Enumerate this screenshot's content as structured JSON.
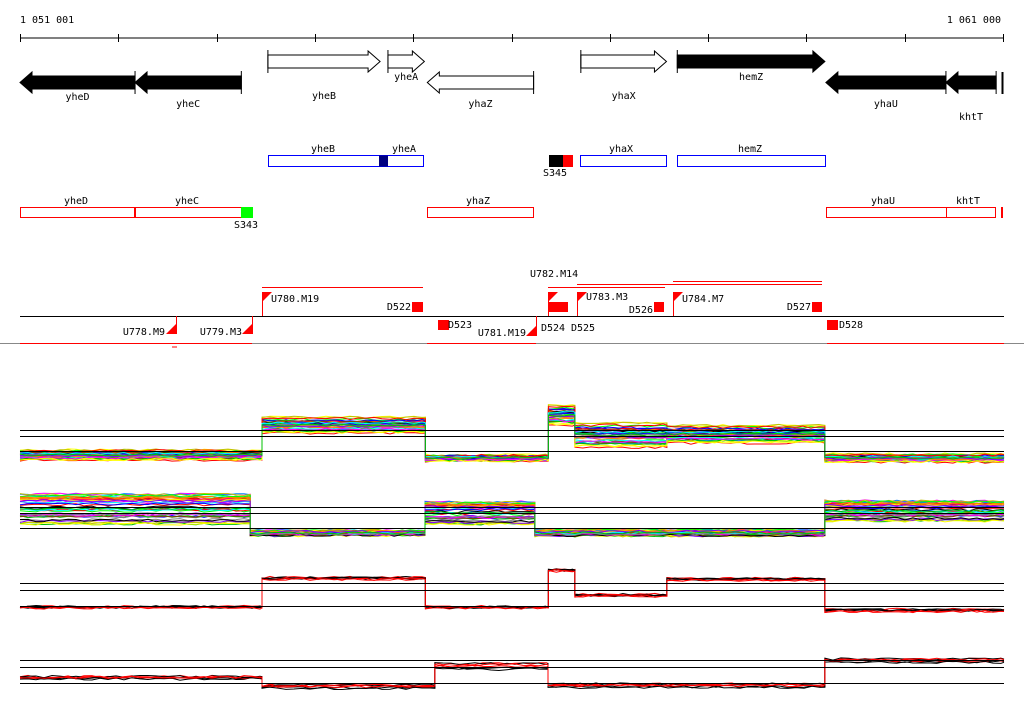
{
  "ruler": {
    "start_label": "1 051 001",
    "end_label": "1 061 000",
    "start": 1051001,
    "end": 1061000,
    "ticks": 11
  },
  "genes": [
    {
      "name": "yheD",
      "start": 1051001,
      "end": 1052170,
      "strand": "-",
      "filled": true
    },
    {
      "name": "yheC",
      "start": 1052170,
      "end": 1053250,
      "strand": "-",
      "filled": true
    },
    {
      "name": "yheB",
      "start": 1053520,
      "end": 1054660,
      "strand": "+",
      "filled": false
    },
    {
      "name": "yheA",
      "start": 1054740,
      "end": 1055110,
      "strand": "+",
      "filled": false
    },
    {
      "name": "yhaZ",
      "start": 1055140,
      "end": 1056220,
      "strand": "-",
      "filled": false
    },
    {
      "name": "yhaX",
      "start": 1056700,
      "end": 1057570,
      "strand": "+",
      "filled": false
    },
    {
      "name": "hemZ",
      "start": 1057680,
      "end": 1059180,
      "strand": "+",
      "filled": true
    },
    {
      "name": "yhaU",
      "start": 1059190,
      "end": 1060410,
      "strand": "-",
      "filled": true
    },
    {
      "name": "khtT",
      "start": 1060410,
      "end": 1060920,
      "strand": "-",
      "filled": true
    }
  ],
  "operons_blue": {
    "labels": [
      "yheB",
      "yheA",
      "yhaX",
      "hemZ"
    ],
    "site": "S345"
  },
  "operons_red": {
    "labels": [
      "yheD",
      "yheC",
      "yhaZ",
      "yhaU",
      "khtT"
    ],
    "site": "S343"
  },
  "transcription_units": {
    "labels": [
      "U778.M9",
      "U779.M3",
      "U780.M19",
      "D522",
      "D523",
      "U781.M19",
      "D524",
      "D525",
      "U782.M14",
      "U783.M3",
      "D526",
      "U784.M7",
      "D527",
      "D528"
    ]
  },
  "colors": {
    "gene_fill": "#000000",
    "operon_blue": "#0000ff",
    "operon_red": "#ff0000",
    "site_green": "#00ff00",
    "site_dark_blue": "#000080"
  },
  "chart_data": [
    {
      "type": "line",
      "title": "",
      "lines": 40,
      "palette": "multi",
      "ref_lines": [
        4.0,
        3.4,
        1.9
      ],
      "segments": [
        [
          1051001,
          1053460,
          1.5,
          1.0
        ],
        [
          1053460,
          1055120,
          4.5,
          1.6
        ],
        [
          1055120,
          1056370,
          1.2,
          0.6
        ],
        [
          1056370,
          1056640,
          5.5,
          2.0
        ],
        [
          1056640,
          1057575,
          3.5,
          2.5
        ],
        [
          1057575,
          1059180,
          3.6,
          1.8
        ],
        [
          1059180,
          1061000,
          1.2,
          0.8
        ]
      ]
    },
    {
      "type": "line",
      "title": "",
      "lines": 40,
      "palette": "multi",
      "ref_lines": [
        3.8,
        3.2,
        1.7
      ],
      "segments": [
        [
          1051001,
          1053340,
          3.6,
          3.0
        ],
        [
          1053340,
          1055116,
          1.2,
          0.5
        ],
        [
          1055116,
          1056233,
          3.2,
          2.2
        ],
        [
          1056233,
          1059180,
          1.2,
          0.6
        ],
        [
          1059180,
          1061000,
          3.4,
          2.0
        ]
      ]
    },
    {
      "type": "line",
      "title": "",
      "lines": 6,
      "palette": "black-red",
      "ref_lines": [
        3.2,
        2.5,
        0.9
      ],
      "segments": [
        [
          1051001,
          1053460,
          0.8,
          0.3
        ],
        [
          1053460,
          1055120,
          3.7,
          0.4
        ],
        [
          1055120,
          1056370,
          0.8,
          0.3
        ],
        [
          1056370,
          1056640,
          4.5,
          0.4
        ],
        [
          1056640,
          1057575,
          2.0,
          0.4
        ],
        [
          1057575,
          1059180,
          3.6,
          0.4
        ],
        [
          1059180,
          1061000,
          0.5,
          0.5
        ]
      ]
    },
    {
      "type": "line",
      "title": "",
      "lines": 6,
      "palette": "black-red",
      "ref_lines": [
        3.0,
        2.3,
        0.7
      ],
      "segments": [
        [
          1051001,
          1053460,
          1.2,
          0.3
        ],
        [
          1053460,
          1055217,
          0.3,
          0.4
        ],
        [
          1055217,
          1056366,
          2.3,
          0.7
        ],
        [
          1056366,
          1059180,
          0.4,
          0.4
        ],
        [
          1059180,
          1061000,
          2.9,
          0.4
        ]
      ]
    }
  ]
}
